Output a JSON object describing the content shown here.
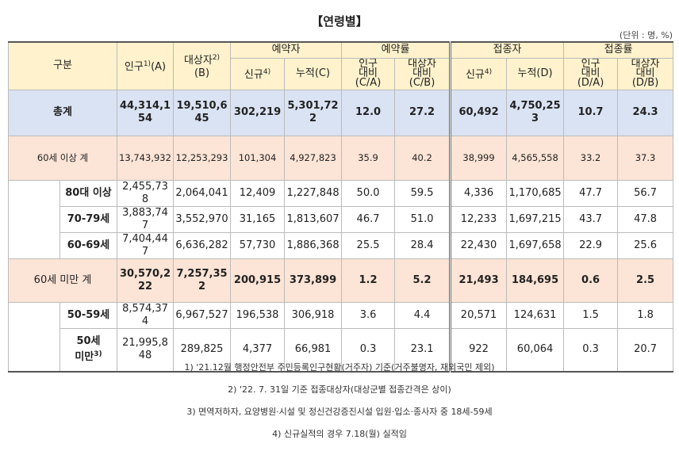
{
  "title": "【연령별】",
  "unit": "(단위 : 명, %)",
  "header": {
    "group": "구분",
    "population": {
      "text": "인구",
      "sup": "1)",
      "suffix": "(A)"
    },
    "target": {
      "text": "대상자",
      "sup": "2)",
      "suffix": "(B)"
    },
    "groups": [
      "예약자",
      "예약률",
      "접종자",
      "접종률"
    ],
    "sub": [
      {
        "text": "신규",
        "sup": "4)"
      },
      {
        "text": "누적(C)"
      },
      {
        "text": "인구\n대비\n(C/A)"
      },
      {
        "text": "대상자\n대비\n(C/B)"
      },
      {
        "text": "신규",
        "sup": "4)"
      },
      {
        "text": "누적(D)"
      },
      {
        "text": "인구\n대비\n(D/A)"
      },
      {
        "text": "대상자\n대비\n(D/B)"
      }
    ]
  },
  "rows": [
    {
      "label": "총계",
      "values": [
        "44,314,154",
        "19,510,645",
        "302,219",
        "5,301,722",
        "12.0",
        "27.2",
        "60,492",
        "4,750,253",
        "10.7",
        "24.3"
      ]
    },
    {
      "label": "60세 이상 계",
      "values": [
        "13,743,932",
        "12,253,293",
        "101,304",
        "4,927,823",
        "35.9",
        "40.2",
        "38,999",
        "4,565,558",
        "33.2",
        "37.3"
      ]
    },
    {
      "label": "80대 이상",
      "values": [
        "2,455,738",
        "2,064,041",
        "12,409",
        "1,227,848",
        "50.0",
        "59.5",
        "4,336",
        "1,170,685",
        "47.7",
        "56.7"
      ]
    },
    {
      "label": "70-79세",
      "values": [
        "3,883,747",
        "3,552,970",
        "31,165",
        "1,813,607",
        "46.7",
        "51.0",
        "12,233",
        "1,697,215",
        "43.7",
        "47.8"
      ]
    },
    {
      "label": "60-69세",
      "values": [
        "7,404,447",
        "6,636,282",
        "57,730",
        "1,886,368",
        "25.5",
        "28.4",
        "22,430",
        "1,697,658",
        "22.9",
        "25.6"
      ]
    },
    {
      "label": "60세 미만 계",
      "values": [
        "30,570,222",
        "7,257,352",
        "200,915",
        "373,899",
        "1.2",
        "5.2",
        "21,493",
        "184,695",
        "0.6",
        "2.5"
      ]
    },
    {
      "label": "50-59세",
      "values": [
        "8,574,374",
        "6,967,527",
        "196,538",
        "306,918",
        "3.6",
        "4.4",
        "20,571",
        "124,631",
        "1.5",
        "1.8"
      ]
    },
    {
      "label": "50세\n미만",
      "sup": "3)",
      "values": [
        "21,995,848",
        "289,825",
        "4,377",
        "66,981",
        "0.3",
        "23.1",
        "922",
        "60,064",
        "0.3",
        "20.7"
      ]
    }
  ],
  "footnotes": [
    "1) '21.12월 행정안전부 주민등록인구현황(거주자) 기준(거주불명자, 재외국민 제외)",
    "2) '22. 7. 31일 기준 접종대상자(대상군별 접종간격은 상이)",
    "3) 면역저하자, 요양병원·시설 및 정신건강증진시설 입원·입소·종사자 중 18세-59세",
    "4) 신규실적의 경우 7.18(월) 실적임"
  ]
}
